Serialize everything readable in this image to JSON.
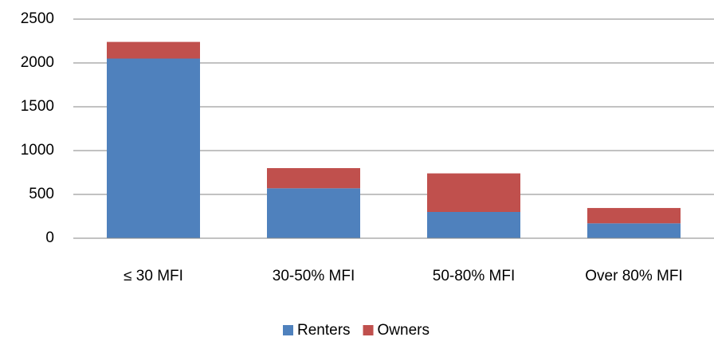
{
  "chart_data": {
    "type": "stacked_bar",
    "categories": [
      "≤ 30 MFI",
      "30-50% MFI",
      "50-80% MFI",
      "Over 80% MFI"
    ],
    "series": [
      {
        "name": "Renters",
        "color": "#4f81bd",
        "values": [
          2050,
          570,
          300,
          170
        ]
      },
      {
        "name": "Owners",
        "color": "#c0504d",
        "values": [
          190,
          230,
          440,
          175
        ]
      }
    ],
    "ylim": [
      0,
      2500
    ],
    "yticks": [
      0,
      500,
      1000,
      1500,
      2000,
      2500
    ],
    "grid": true,
    "legend": "bottom"
  }
}
